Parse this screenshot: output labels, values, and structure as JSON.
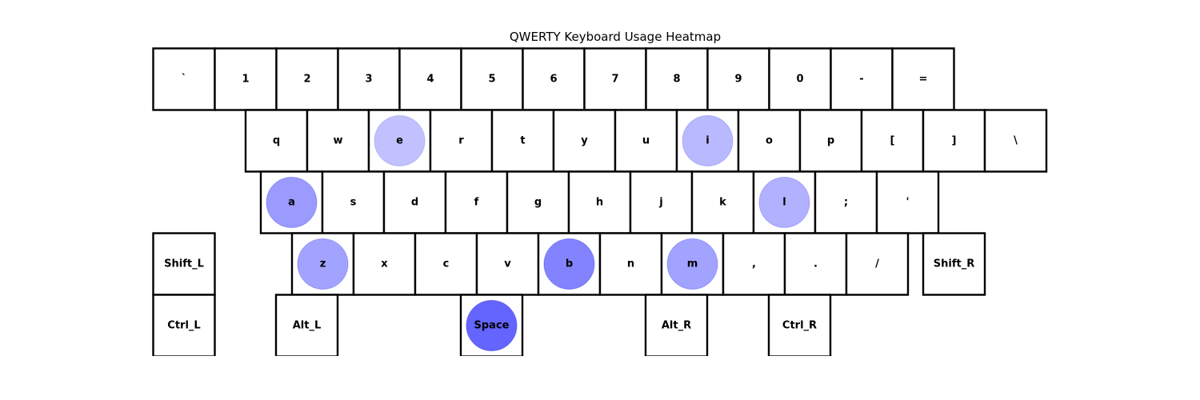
{
  "chart_data": {
    "type": "heatmap",
    "title": "QWERTY Keyboard Usage Heatmap",
    "marker_color": "#6464ff",
    "rows": [
      [
        "`",
        "1",
        "2",
        "3",
        "4",
        "5",
        "6",
        "7",
        "8",
        "9",
        "0",
        "-",
        "="
      ],
      [
        "q",
        "w",
        "e",
        "r",
        "t",
        "y",
        "u",
        "i",
        "o",
        "p",
        "[",
        "]",
        "\\"
      ],
      [
        "a",
        "s",
        "d",
        "f",
        "g",
        "h",
        "j",
        "k",
        "l",
        ";",
        "'"
      ],
      [
        "Shift_L",
        "z",
        "x",
        "c",
        "v",
        "b",
        "n",
        "m",
        ",",
        ".",
        "/",
        "Shift_R"
      ],
      [
        "Ctrl_L",
        "Alt_L",
        "Space",
        "Alt_R",
        "Ctrl_R"
      ]
    ],
    "usage": {
      "Space": 1.0,
      "b": 0.8,
      "a": 0.65,
      "m": 0.6,
      "z": 0.6,
      "l": 0.5,
      "i": 0.45,
      "e": 0.4
    }
  }
}
